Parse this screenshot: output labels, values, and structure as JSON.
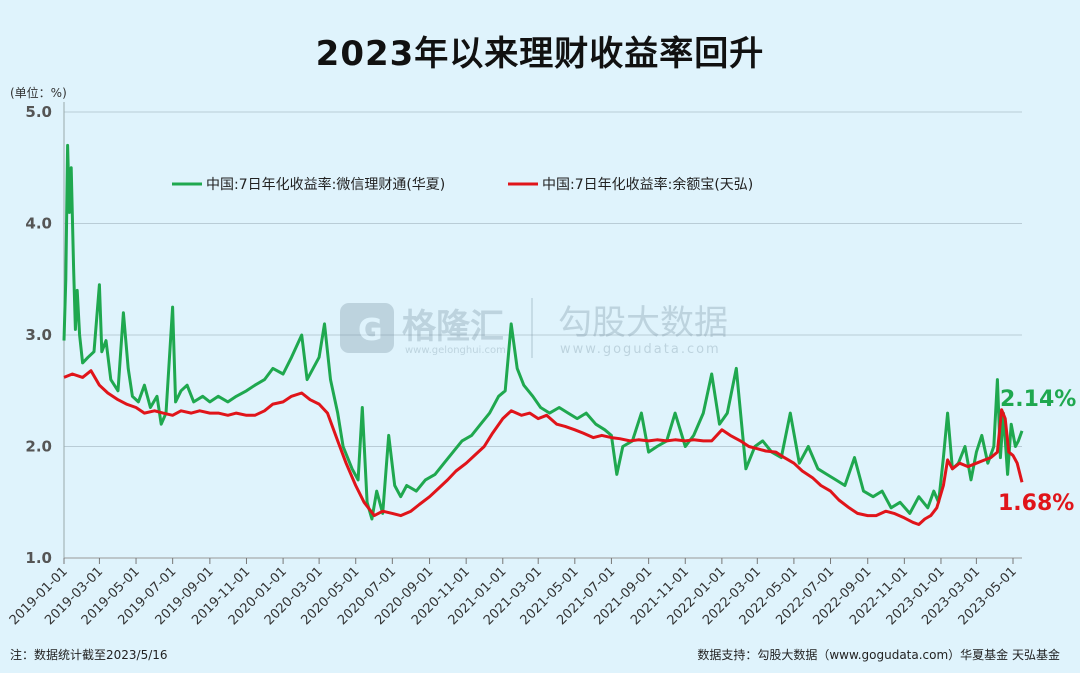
{
  "title": "2023年以来理财收益率回升",
  "unit_label": "(单位：%)",
  "watermark": {
    "brand1": "格隆汇",
    "brand1_url": "www.gelonghui.com",
    "brand2": "勾股大数据",
    "brand2_url": "www.gogudata.com"
  },
  "footer": {
    "note": "注：数据统计截至2023/5/16",
    "source": "数据支持：勾股大数据（www.gogudata.com）华夏基金  天弘基金"
  },
  "colors": {
    "green": "#1fa84f",
    "red": "#e0141a",
    "background": "#dff3fc",
    "grid": "#b9ccd6"
  },
  "chart_data": {
    "type": "line",
    "title": "2023年以来理财收益率回升",
    "ylabel": "(单位：%)",
    "ylim": [
      1.0,
      5.0
    ],
    "yticks": [
      "1.0",
      "2.0",
      "3.0",
      "4.0",
      "5.0"
    ],
    "xticks": [
      "2019-01-01",
      "2019-03-01",
      "2019-05-01",
      "2019-07-01",
      "2019-09-01",
      "2019-11-01",
      "2020-01-01",
      "2020-03-01",
      "2020-05-01",
      "2020-07-01",
      "2020-09-01",
      "2020-11-01",
      "2021-01-01",
      "2021-03-01",
      "2021-05-01",
      "2021-07-01",
      "2021-09-01",
      "2021-11-01",
      "2022-01-01",
      "2022-03-01",
      "2022-05-01",
      "2022-07-01",
      "2022-09-01",
      "2022-11-01",
      "2023-01-01",
      "2023-03-01",
      "2023-05-01"
    ],
    "xlim": [
      "2019-01-01",
      "2023-05-16"
    ],
    "legend_position": "top-left",
    "grid": true,
    "series": [
      {
        "name": "中国:7日年化收益率:微信理财通(华夏)",
        "color": "#1fa84f",
        "end_label": "2.14%",
        "points": [
          [
            "2019-01-01",
            2.95
          ],
          [
            "2019-01-04",
            3.5
          ],
          [
            "2019-01-07",
            4.7
          ],
          [
            "2019-01-10",
            4.1
          ],
          [
            "2019-01-13",
            4.5
          ],
          [
            "2019-01-17",
            3.6
          ],
          [
            "2019-01-20",
            3.05
          ],
          [
            "2019-01-23",
            3.4
          ],
          [
            "2019-01-27",
            3.0
          ],
          [
            "2019-02-01",
            2.75
          ],
          [
            "2019-02-10",
            2.8
          ],
          [
            "2019-02-20",
            2.85
          ],
          [
            "2019-03-01",
            3.45
          ],
          [
            "2019-03-05",
            2.85
          ],
          [
            "2019-03-12",
            2.95
          ],
          [
            "2019-03-20",
            2.6
          ],
          [
            "2019-04-01",
            2.5
          ],
          [
            "2019-04-10",
            3.2
          ],
          [
            "2019-04-18",
            2.7
          ],
          [
            "2019-04-25",
            2.45
          ],
          [
            "2019-05-05",
            2.4
          ],
          [
            "2019-05-15",
            2.55
          ],
          [
            "2019-05-25",
            2.35
          ],
          [
            "2019-06-05",
            2.45
          ],
          [
            "2019-06-12",
            2.2
          ],
          [
            "2019-06-20",
            2.3
          ],
          [
            "2019-07-01",
            3.25
          ],
          [
            "2019-07-06",
            2.4
          ],
          [
            "2019-07-15",
            2.5
          ],
          [
            "2019-07-25",
            2.55
          ],
          [
            "2019-08-05",
            2.4
          ],
          [
            "2019-08-20",
            2.45
          ],
          [
            "2019-09-01",
            2.4
          ],
          [
            "2019-09-15",
            2.45
          ],
          [
            "2019-10-01",
            2.4
          ],
          [
            "2019-10-15",
            2.45
          ],
          [
            "2019-11-01",
            2.5
          ],
          [
            "2019-11-15",
            2.55
          ],
          [
            "2019-12-01",
            2.6
          ],
          [
            "2019-12-15",
            2.7
          ],
          [
            "2020-01-01",
            2.65
          ],
          [
            "2020-01-15",
            2.8
          ],
          [
            "2020-02-01",
            3.0
          ],
          [
            "2020-02-10",
            2.6
          ],
          [
            "2020-02-20",
            2.7
          ],
          [
            "2020-03-01",
            2.8
          ],
          [
            "2020-03-10",
            3.1
          ],
          [
            "2020-03-20",
            2.6
          ],
          [
            "2020-04-01",
            2.3
          ],
          [
            "2020-04-10",
            2.0
          ],
          [
            "2020-04-25",
            1.8
          ],
          [
            "2020-05-05",
            1.7
          ],
          [
            "2020-05-12",
            2.35
          ],
          [
            "2020-05-20",
            1.5
          ],
          [
            "2020-05-28",
            1.35
          ],
          [
            "2020-06-05",
            1.6
          ],
          [
            "2020-06-15",
            1.4
          ],
          [
            "2020-06-25",
            2.1
          ],
          [
            "2020-07-05",
            1.65
          ],
          [
            "2020-07-15",
            1.55
          ],
          [
            "2020-07-25",
            1.65
          ],
          [
            "2020-08-10",
            1.6
          ],
          [
            "2020-08-25",
            1.7
          ],
          [
            "2020-09-10",
            1.75
          ],
          [
            "2020-09-25",
            1.85
          ],
          [
            "2020-10-10",
            1.95
          ],
          [
            "2020-10-25",
            2.05
          ],
          [
            "2020-11-10",
            2.1
          ],
          [
            "2020-11-25",
            2.2
          ],
          [
            "2020-12-10",
            2.3
          ],
          [
            "2020-12-25",
            2.45
          ],
          [
            "2021-01-05",
            2.5
          ],
          [
            "2021-01-15",
            3.1
          ],
          [
            "2021-01-25",
            2.7
          ],
          [
            "2021-02-05",
            2.55
          ],
          [
            "2021-02-20",
            2.45
          ],
          [
            "2021-03-05",
            2.35
          ],
          [
            "2021-03-20",
            2.3
          ],
          [
            "2021-04-05",
            2.35
          ],
          [
            "2021-04-20",
            2.3
          ],
          [
            "2021-05-05",
            2.25
          ],
          [
            "2021-05-20",
            2.3
          ],
          [
            "2021-06-05",
            2.2
          ],
          [
            "2021-06-20",
            2.15
          ],
          [
            "2021-07-01",
            2.1
          ],
          [
            "2021-07-10",
            1.75
          ],
          [
            "2021-07-20",
            2.0
          ],
          [
            "2021-08-05",
            2.05
          ],
          [
            "2021-08-20",
            2.3
          ],
          [
            "2021-09-01",
            1.95
          ],
          [
            "2021-09-15",
            2.0
          ],
          [
            "2021-10-01",
            2.05
          ],
          [
            "2021-10-15",
            2.3
          ],
          [
            "2021-11-01",
            2.0
          ],
          [
            "2021-11-15",
            2.1
          ],
          [
            "2021-12-01",
            2.3
          ],
          [
            "2021-12-15",
            2.65
          ],
          [
            "2021-12-28",
            2.2
          ],
          [
            "2022-01-10",
            2.3
          ],
          [
            "2022-01-25",
            2.7
          ],
          [
            "2022-02-10",
            1.8
          ],
          [
            "2022-02-25",
            2.0
          ],
          [
            "2022-03-10",
            2.05
          ],
          [
            "2022-03-25",
            1.95
          ],
          [
            "2022-04-10",
            1.9
          ],
          [
            "2022-04-25",
            2.3
          ],
          [
            "2022-05-10",
            1.85
          ],
          [
            "2022-05-25",
            2.0
          ],
          [
            "2022-06-10",
            1.8
          ],
          [
            "2022-06-25",
            1.75
          ],
          [
            "2022-07-10",
            1.7
          ],
          [
            "2022-07-25",
            1.65
          ],
          [
            "2022-08-10",
            1.9
          ],
          [
            "2022-08-25",
            1.6
          ],
          [
            "2022-09-10",
            1.55
          ],
          [
            "2022-09-25",
            1.6
          ],
          [
            "2022-10-10",
            1.45
          ],
          [
            "2022-10-25",
            1.5
          ],
          [
            "2022-11-10",
            1.4
          ],
          [
            "2022-11-25",
            1.55
          ],
          [
            "2022-12-10",
            1.45
          ],
          [
            "2022-12-20",
            1.6
          ],
          [
            "2022-12-28",
            1.5
          ],
          [
            "2023-01-05",
            1.9
          ],
          [
            "2023-01-12",
            2.3
          ],
          [
            "2023-01-20",
            1.8
          ],
          [
            "2023-01-30",
            1.85
          ],
          [
            "2023-02-10",
            2.0
          ],
          [
            "2023-02-20",
            1.7
          ],
          [
            "2023-03-01",
            1.95
          ],
          [
            "2023-03-10",
            2.1
          ],
          [
            "2023-03-20",
            1.85
          ],
          [
            "2023-03-30",
            2.0
          ],
          [
            "2023-04-05",
            2.6
          ],
          [
            "2023-04-10",
            1.9
          ],
          [
            "2023-04-15",
            2.3
          ],
          [
            "2023-04-22",
            1.75
          ],
          [
            "2023-04-28",
            2.2
          ],
          [
            "2023-05-05",
            2.0
          ],
          [
            "2023-05-10",
            2.05
          ],
          [
            "2023-05-16",
            2.14
          ]
        ]
      },
      {
        "name": "中国:7日年化收益率:余额宝(天弘)",
        "color": "#e0141a",
        "end_label": "1.68%",
        "points": [
          [
            "2019-01-01",
            2.62
          ],
          [
            "2019-01-15",
            2.65
          ],
          [
            "2019-02-01",
            2.62
          ],
          [
            "2019-02-15",
            2.68
          ],
          [
            "2019-03-01",
            2.55
          ],
          [
            "2019-03-15",
            2.48
          ],
          [
            "2019-04-01",
            2.42
          ],
          [
            "2019-04-15",
            2.38
          ],
          [
            "2019-05-01",
            2.35
          ],
          [
            "2019-05-15",
            2.3
          ],
          [
            "2019-06-01",
            2.32
          ],
          [
            "2019-06-15",
            2.3
          ],
          [
            "2019-07-01",
            2.28
          ],
          [
            "2019-07-15",
            2.32
          ],
          [
            "2019-08-01",
            2.3
          ],
          [
            "2019-08-15",
            2.32
          ],
          [
            "2019-09-01",
            2.3
          ],
          [
            "2019-09-15",
            2.3
          ],
          [
            "2019-10-01",
            2.28
          ],
          [
            "2019-10-15",
            2.3
          ],
          [
            "2019-11-01",
            2.28
          ],
          [
            "2019-11-15",
            2.28
          ],
          [
            "2019-12-01",
            2.32
          ],
          [
            "2019-12-15",
            2.38
          ],
          [
            "2020-01-01",
            2.4
          ],
          [
            "2020-01-15",
            2.45
          ],
          [
            "2020-02-01",
            2.48
          ],
          [
            "2020-02-15",
            2.42
          ],
          [
            "2020-03-01",
            2.38
          ],
          [
            "2020-03-15",
            2.3
          ],
          [
            "2020-04-01",
            2.05
          ],
          [
            "2020-04-15",
            1.85
          ],
          [
            "2020-05-01",
            1.65
          ],
          [
            "2020-05-15",
            1.5
          ],
          [
            "2020-06-01",
            1.38
          ],
          [
            "2020-06-15",
            1.42
          ],
          [
            "2020-07-01",
            1.4
          ],
          [
            "2020-07-15",
            1.38
          ],
          [
            "2020-08-01",
            1.42
          ],
          [
            "2020-08-15",
            1.48
          ],
          [
            "2020-09-01",
            1.55
          ],
          [
            "2020-09-15",
            1.62
          ],
          [
            "2020-10-01",
            1.7
          ],
          [
            "2020-10-15",
            1.78
          ],
          [
            "2020-11-01",
            1.85
          ],
          [
            "2020-11-15",
            1.92
          ],
          [
            "2020-12-01",
            2.0
          ],
          [
            "2020-12-15",
            2.12
          ],
          [
            "2021-01-01",
            2.25
          ],
          [
            "2021-01-15",
            2.32
          ],
          [
            "2021-02-01",
            2.28
          ],
          [
            "2021-02-15",
            2.3
          ],
          [
            "2021-03-01",
            2.25
          ],
          [
            "2021-03-15",
            2.28
          ],
          [
            "2021-04-01",
            2.2
          ],
          [
            "2021-04-15",
            2.18
          ],
          [
            "2021-05-01",
            2.15
          ],
          [
            "2021-05-15",
            2.12
          ],
          [
            "2021-06-01",
            2.08
          ],
          [
            "2021-06-15",
            2.1
          ],
          [
            "2021-07-01",
            2.08
          ],
          [
            "2021-07-15",
            2.07
          ],
          [
            "2021-08-01",
            2.05
          ],
          [
            "2021-08-15",
            2.06
          ],
          [
            "2021-09-01",
            2.05
          ],
          [
            "2021-09-15",
            2.06
          ],
          [
            "2021-10-01",
            2.05
          ],
          [
            "2021-10-15",
            2.06
          ],
          [
            "2021-11-01",
            2.05
          ],
          [
            "2021-11-15",
            2.06
          ],
          [
            "2021-12-01",
            2.05
          ],
          [
            "2021-12-15",
            2.05
          ],
          [
            "2022-01-01",
            2.15
          ],
          [
            "2022-01-15",
            2.1
          ],
          [
            "2022-02-01",
            2.05
          ],
          [
            "2022-02-15",
            2.0
          ],
          [
            "2022-03-01",
            1.98
          ],
          [
            "2022-03-15",
            1.96
          ],
          [
            "2022-04-01",
            1.95
          ],
          [
            "2022-04-15",
            1.9
          ],
          [
            "2022-05-01",
            1.85
          ],
          [
            "2022-05-15",
            1.78
          ],
          [
            "2022-06-01",
            1.72
          ],
          [
            "2022-06-15",
            1.65
          ],
          [
            "2022-07-01",
            1.6
          ],
          [
            "2022-07-15",
            1.52
          ],
          [
            "2022-08-01",
            1.45
          ],
          [
            "2022-08-15",
            1.4
          ],
          [
            "2022-09-01",
            1.38
          ],
          [
            "2022-09-15",
            1.38
          ],
          [
            "2022-10-01",
            1.42
          ],
          [
            "2022-10-15",
            1.4
          ],
          [
            "2022-11-01",
            1.36
          ],
          [
            "2022-11-15",
            1.32
          ],
          [
            "2022-11-25",
            1.3
          ],
          [
            "2022-12-05",
            1.35
          ],
          [
            "2022-12-15",
            1.38
          ],
          [
            "2022-12-25",
            1.45
          ],
          [
            "2023-01-05",
            1.65
          ],
          [
            "2023-01-12",
            1.88
          ],
          [
            "2023-01-20",
            1.8
          ],
          [
            "2023-02-01",
            1.85
          ],
          [
            "2023-02-15",
            1.82
          ],
          [
            "2023-03-01",
            1.85
          ],
          [
            "2023-03-15",
            1.88
          ],
          [
            "2023-03-25",
            1.9
          ],
          [
            "2023-04-05",
            1.95
          ],
          [
            "2023-04-12",
            2.33
          ],
          [
            "2023-04-18",
            2.25
          ],
          [
            "2023-04-24",
            1.95
          ],
          [
            "2023-05-01",
            1.92
          ],
          [
            "2023-05-08",
            1.85
          ],
          [
            "2023-05-16",
            1.68
          ]
        ]
      }
    ]
  }
}
